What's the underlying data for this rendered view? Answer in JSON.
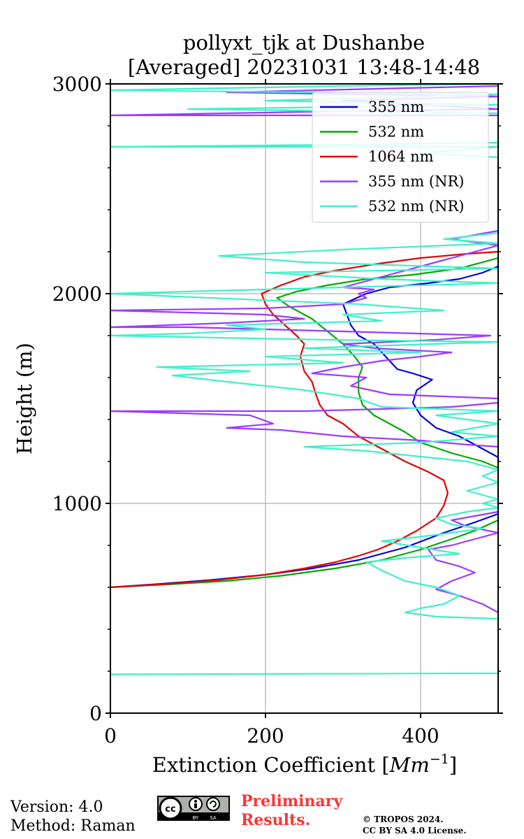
{
  "chart_data": {
    "type": "line",
    "title_line1": "pollyxt_tjk at Dushanbe",
    "title_line2": "[Averaged] 20231031 13:48-14:48",
    "xlabel": "Extinction Coefficient [",
    "xlabel_unit": "Mm",
    "xlabel_exp": "−1",
    "xlabel_close": "]",
    "ylabel": "Height (m)",
    "xlim": [
      0,
      500
    ],
    "ylim": [
      0,
      3000
    ],
    "xticks": [
      0,
      200,
      400
    ],
    "yticks": [
      0,
      1000,
      2000,
      3000
    ],
    "xtick_labels": [
      "0",
      "200",
      "400"
    ],
    "ytick_labels": [
      "0",
      "1000",
      "2000",
      "3000"
    ],
    "grid": true,
    "legend_position": "top-right",
    "series": [
      {
        "name": "355 nm",
        "color": "#0000e6",
        "points": [
          [
            0,
            600
          ],
          [
            60,
            615
          ],
          [
            130,
            635
          ],
          [
            200,
            660
          ],
          [
            260,
            690
          ],
          [
            320,
            730
          ],
          [
            380,
            790
          ],
          [
            430,
            860
          ],
          [
            470,
            910
          ],
          [
            500,
            950
          ],
          [
            500,
            1220
          ],
          [
            480,
            1260
          ],
          [
            450,
            1320
          ],
          [
            420,
            1360
          ],
          [
            400,
            1420
          ],
          [
            390,
            1480
          ],
          [
            395,
            1540
          ],
          [
            415,
            1590
          ],
          [
            390,
            1620
          ],
          [
            370,
            1640
          ],
          [
            355,
            1700
          ],
          [
            340,
            1760
          ],
          [
            320,
            1800
          ],
          [
            310,
            1850
          ],
          [
            305,
            1900
          ],
          [
            300,
            1950
          ],
          [
            330,
            2000
          ],
          [
            360,
            2030
          ],
          [
            410,
            2050
          ],
          [
            450,
            2070
          ],
          [
            480,
            2100
          ],
          [
            500,
            2130
          ]
        ]
      },
      {
        "name": "532 nm",
        "color": "#00aa00",
        "points": [
          [
            0,
            600
          ],
          [
            80,
            615
          ],
          [
            150,
            630
          ],
          [
            220,
            655
          ],
          [
            290,
            690
          ],
          [
            350,
            730
          ],
          [
            400,
            780
          ],
          [
            440,
            830
          ],
          [
            470,
            870
          ],
          [
            500,
            920
          ],
          [
            500,
            1170
          ],
          [
            480,
            1200
          ],
          [
            440,
            1240
          ],
          [
            400,
            1290
          ],
          [
            380,
            1340
          ],
          [
            360,
            1380
          ],
          [
            340,
            1420
          ],
          [
            325,
            1470
          ],
          [
            320,
            1530
          ],
          [
            320,
            1600
          ],
          [
            325,
            1650
          ],
          [
            315,
            1700
          ],
          [
            300,
            1760
          ],
          [
            280,
            1820
          ],
          [
            260,
            1880
          ],
          [
            230,
            1940
          ],
          [
            215,
            1980
          ],
          [
            240,
            2010
          ],
          [
            280,
            2040
          ],
          [
            330,
            2070
          ],
          [
            390,
            2090
          ],
          [
            450,
            2120
          ],
          [
            500,
            2170
          ]
        ]
      },
      {
        "name": "1064 nm",
        "color": "#e60000",
        "points": [
          [
            0,
            600
          ],
          [
            70,
            615
          ],
          [
            140,
            635
          ],
          [
            200,
            660
          ],
          [
            250,
            690
          ],
          [
            290,
            720
          ],
          [
            320,
            750
          ],
          [
            345,
            780
          ],
          [
            370,
            820
          ],
          [
            395,
            870
          ],
          [
            420,
            930
          ],
          [
            430,
            990
          ],
          [
            435,
            1050
          ],
          [
            430,
            1110
          ],
          [
            410,
            1150
          ],
          [
            380,
            1200
          ],
          [
            350,
            1260
          ],
          [
            320,
            1320
          ],
          [
            300,
            1380
          ],
          [
            280,
            1420
          ],
          [
            270,
            1470
          ],
          [
            265,
            1520
          ],
          [
            260,
            1580
          ],
          [
            250,
            1630
          ],
          [
            245,
            1700
          ],
          [
            250,
            1760
          ],
          [
            240,
            1800
          ],
          [
            225,
            1850
          ],
          [
            210,
            1900
          ],
          [
            200,
            1950
          ],
          [
            195,
            2000
          ],
          [
            220,
            2040
          ],
          [
            250,
            2080
          ],
          [
            290,
            2110
          ],
          [
            340,
            2140
          ],
          [
            400,
            2170
          ],
          [
            460,
            2190
          ],
          [
            500,
            2200
          ]
        ]
      },
      {
        "name": "355 nm (NR)",
        "color": "#9b3bff",
        "points": [
          [
            500,
            960
          ],
          [
            470,
            940
          ],
          [
            440,
            920
          ],
          [
            460,
            890
          ],
          [
            500,
            860
          ],
          [
            470,
            830
          ],
          [
            440,
            800
          ],
          [
            410,
            780
          ],
          [
            420,
            730
          ],
          [
            450,
            700
          ],
          [
            470,
            670
          ],
          [
            440,
            630
          ],
          [
            420,
            590
          ],
          [
            450,
            560
          ],
          [
            480,
            520
          ],
          [
            500,
            480
          ],
          [
            500,
            1020
          ],
          [
            500,
            1480
          ],
          [
            440,
            1460
          ],
          [
            350,
            1450
          ],
          [
            250,
            1440
          ],
          [
            0,
            1440
          ],
          [
            180,
            1420
          ],
          [
            210,
            1380
          ],
          [
            150,
            1360
          ],
          [
            220,
            1350
          ],
          [
            300,
            1320
          ],
          [
            400,
            1300
          ],
          [
            460,
            1280
          ],
          [
            500,
            1270
          ],
          [
            500,
            1500
          ],
          [
            360,
            1520
          ],
          [
            310,
            1560
          ],
          [
            330,
            1600
          ],
          [
            260,
            1620
          ],
          [
            300,
            1650
          ],
          [
            350,
            1680
          ],
          [
            400,
            1700
          ],
          [
            440,
            1720
          ],
          [
            340,
            1740
          ],
          [
            300,
            1760
          ],
          [
            420,
            1780
          ],
          [
            490,
            1800
          ],
          [
            300,
            1820
          ],
          [
            200,
            1830
          ],
          [
            100,
            1840
          ],
          [
            0,
            1840
          ],
          [
            150,
            1860
          ],
          [
            250,
            1880
          ],
          [
            200,
            1900
          ],
          [
            100,
            1910
          ],
          [
            0,
            1920
          ],
          [
            200,
            1930
          ],
          [
            300,
            1950
          ],
          [
            330,
            1980
          ],
          [
            320,
            2000
          ],
          [
            340,
            2020
          ],
          [
            300,
            2030
          ],
          [
            500,
            2230
          ],
          [
            440,
            2260
          ],
          [
            500,
            2300
          ],
          [
            500,
            2850
          ],
          [
            0,
            2850
          ],
          [
            300,
            2870
          ],
          [
            500,
            2880
          ],
          [
            300,
            2920
          ],
          [
            500,
            2940
          ],
          [
            150,
            2960
          ],
          [
            500,
            2990
          ]
        ]
      },
      {
        "name": "532 nm (NR)",
        "color": "#40f0c8",
        "points": [
          [
            0,
            185
          ],
          [
            500,
            190
          ],
          [
            500,
            450
          ],
          [
            420,
            460
          ],
          [
            380,
            480
          ],
          [
            400,
            500
          ],
          [
            430,
            520
          ],
          [
            450,
            560
          ],
          [
            420,
            600
          ],
          [
            380,
            630
          ],
          [
            350,
            680
          ],
          [
            330,
            720
          ],
          [
            380,
            740
          ],
          [
            450,
            760
          ],
          [
            400,
            790
          ],
          [
            350,
            820
          ],
          [
            420,
            850
          ],
          [
            480,
            880
          ],
          [
            440,
            900
          ],
          [
            420,
            930
          ],
          [
            460,
            960
          ],
          [
            500,
            980
          ],
          [
            480,
            1000
          ],
          [
            500,
            1020
          ],
          [
            460,
            1060
          ],
          [
            500,
            1100
          ],
          [
            480,
            1130
          ],
          [
            500,
            1160
          ],
          [
            460,
            1200
          ],
          [
            330,
            1250
          ],
          [
            250,
            1270
          ],
          [
            400,
            1290
          ],
          [
            500,
            1320
          ],
          [
            440,
            1340
          ],
          [
            500,
            1380
          ],
          [
            420,
            1420
          ],
          [
            500,
            1440
          ],
          [
            350,
            1460
          ],
          [
            320,
            1500
          ],
          [
            250,
            1540
          ],
          [
            150,
            1580
          ],
          [
            80,
            1610
          ],
          [
            180,
            1630
          ],
          [
            60,
            1650
          ],
          [
            300,
            1670
          ],
          [
            200,
            1700
          ],
          [
            400,
            1720
          ],
          [
            250,
            1740
          ],
          [
            500,
            1770
          ],
          [
            280,
            1780
          ],
          [
            0,
            1800
          ],
          [
            100,
            1810
          ],
          [
            200,
            1830
          ],
          [
            150,
            1850
          ],
          [
            350,
            1870
          ],
          [
            300,
            1900
          ],
          [
            430,
            1920
          ],
          [
            320,
            1950
          ],
          [
            0,
            2000
          ],
          [
            200,
            2020
          ],
          [
            500,
            2050
          ],
          [
            350,
            2070
          ],
          [
            200,
            2100
          ],
          [
            500,
            2120
          ],
          [
            250,
            2150
          ],
          [
            140,
            2180
          ],
          [
            300,
            2210
          ],
          [
            500,
            2240
          ],
          [
            430,
            2260
          ],
          [
            500,
            2290
          ],
          [
            500,
            2650
          ],
          [
            400,
            2670
          ],
          [
            500,
            2700
          ],
          [
            0,
            2700
          ],
          [
            300,
            2710
          ],
          [
            500,
            2720
          ],
          [
            500,
            2860
          ],
          [
            100,
            2880
          ],
          [
            500,
            2900
          ],
          [
            200,
            2920
          ],
          [
            500,
            2950
          ],
          [
            0,
            2970
          ],
          [
            300,
            2990
          ],
          [
            500,
            3000
          ]
        ]
      }
    ]
  },
  "footer": {
    "version": "Version: 4.0",
    "method": "Method: Raman",
    "prelim_line1": "Preliminary",
    "prelim_line2": "Results.",
    "copyright_line1": "© TROPOS 2024.",
    "copyright_line2": "CC BY SA 4.0 License.",
    "cc_badge_text": "cc",
    "cc_badge_by": "BY",
    "cc_badge_sa": "SA"
  }
}
